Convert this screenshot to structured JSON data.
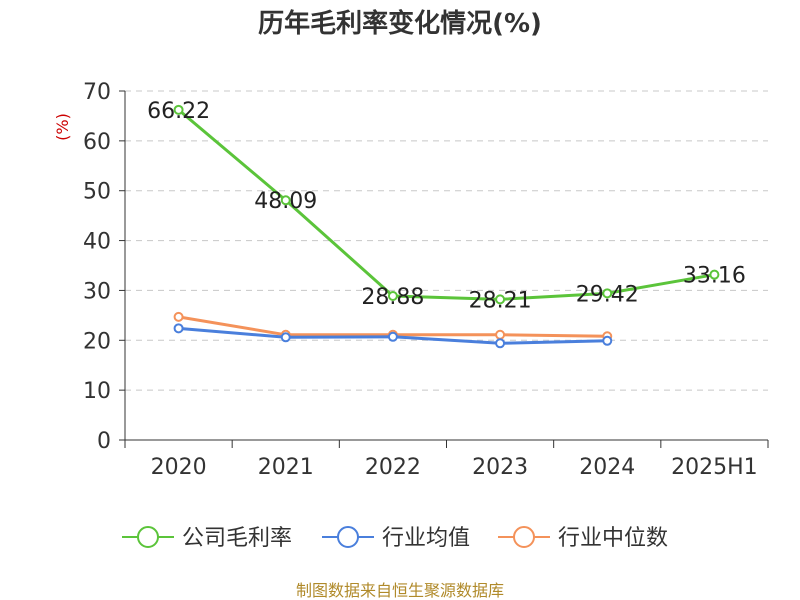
{
  "chart_data": {
    "type": "line",
    "title": "历年毛利率变化情况(%)",
    "ylabel": "(%)",
    "xlabel": "",
    "categories": [
      "2020",
      "2021",
      "2022",
      "2023",
      "2024",
      "2025H1"
    ],
    "ylim": [
      0,
      70
    ],
    "yticks": [
      0,
      10,
      20,
      30,
      40,
      50,
      60,
      70
    ],
    "grid": true,
    "legend_position": "bottom",
    "series": [
      {
        "name": "公司毛利率",
        "color": "#5bc43a",
        "values": [
          66.22,
          48.09,
          28.88,
          28.21,
          29.42,
          33.16
        ],
        "labels": [
          "66.22",
          "48.09",
          "28.88",
          "28.21",
          "29.42",
          "33.16"
        ]
      },
      {
        "name": "行业均值",
        "color": "#4a7fdc",
        "values": [
          22.4,
          20.6,
          20.7,
          19.4,
          19.9,
          null
        ]
      },
      {
        "name": "行业中位数",
        "color": "#f4925a",
        "values": [
          24.7,
          21.1,
          21.1,
          21.1,
          20.8,
          null
        ]
      }
    ]
  },
  "source": "制图数据来自恒生聚源数据库"
}
